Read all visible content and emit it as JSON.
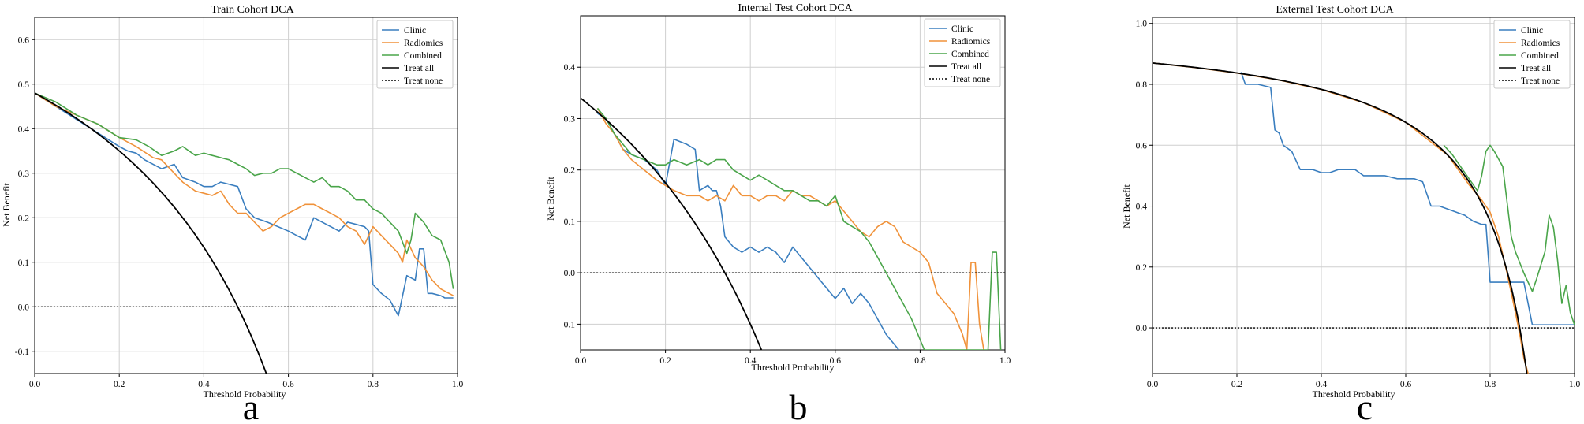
{
  "figure": {
    "panel_letters": [
      "a",
      "b",
      "c"
    ]
  },
  "colors": {
    "clinic": "#3a7ebf",
    "radiomics": "#f0923a",
    "combined": "#4aa54a",
    "treat_all": "#000000",
    "treat_none": "#000000",
    "grid": "#cfcfcf"
  },
  "chart_data": [
    {
      "type": "line",
      "title": "Train Cohort DCA",
      "xlabel": "Threshold Probability",
      "ylabel": "Net Benefit",
      "xlim": [
        0,
        1
      ],
      "ylim": [
        -0.15,
        0.65
      ],
      "xticks": [
        0.0,
        0.2,
        0.4,
        0.6,
        0.8,
        1.0
      ],
      "xtick_labels": [
        "0.0",
        "0.2",
        "0.4",
        "0.6",
        "0.8",
        "1.0"
      ],
      "yticks": [
        -0.1,
        0.0,
        0.1,
        0.2,
        0.3,
        0.4,
        0.5,
        0.6
      ],
      "ytick_labels": [
        "-0.1",
        "0.0",
        "0.1",
        "0.2",
        "0.3",
        "0.4",
        "0.5",
        "0.6"
      ],
      "grid": true,
      "legend": [
        "Clinic",
        "Radiomics",
        "Combined",
        "Treat all",
        "Treat none"
      ],
      "legend_position": "top-right",
      "prevalence": 0.48,
      "series": [
        {
          "name": "Clinic",
          "x": [
            0.0,
            0.05,
            0.1,
            0.15,
            0.2,
            0.22,
            0.24,
            0.26,
            0.3,
            0.33,
            0.35,
            0.38,
            0.4,
            0.42,
            0.44,
            0.46,
            0.48,
            0.5,
            0.52,
            0.55,
            0.6,
            0.62,
            0.64,
            0.66,
            0.68,
            0.7,
            0.72,
            0.74,
            0.76,
            0.78,
            0.79,
            0.8,
            0.82,
            0.84,
            0.86,
            0.88,
            0.9,
            0.91,
            0.92,
            0.93,
            0.94,
            0.96,
            0.97,
            0.99
          ],
          "values": [
            0.48,
            0.45,
            0.42,
            0.39,
            0.36,
            0.35,
            0.345,
            0.33,
            0.31,
            0.32,
            0.29,
            0.28,
            0.27,
            0.27,
            0.28,
            0.275,
            0.27,
            0.22,
            0.2,
            0.19,
            0.17,
            0.16,
            0.15,
            0.2,
            0.19,
            0.18,
            0.17,
            0.19,
            0.185,
            0.18,
            0.17,
            0.05,
            0.03,
            0.015,
            -0.02,
            0.07,
            0.06,
            0.13,
            0.13,
            0.03,
            0.03,
            0.025,
            0.02,
            0.02
          ]
        },
        {
          "name": "Radiomics",
          "x": [
            0.0,
            0.05,
            0.1,
            0.15,
            0.2,
            0.24,
            0.28,
            0.3,
            0.33,
            0.35,
            0.38,
            0.4,
            0.42,
            0.44,
            0.46,
            0.48,
            0.5,
            0.52,
            0.54,
            0.56,
            0.58,
            0.6,
            0.62,
            0.64,
            0.66,
            0.68,
            0.7,
            0.72,
            0.74,
            0.76,
            0.78,
            0.8,
            0.82,
            0.84,
            0.86,
            0.87,
            0.88,
            0.9,
            0.92,
            0.94,
            0.96,
            0.98,
            0.99
          ],
          "values": [
            0.48,
            0.45,
            0.43,
            0.41,
            0.38,
            0.36,
            0.335,
            0.33,
            0.3,
            0.28,
            0.26,
            0.255,
            0.25,
            0.26,
            0.23,
            0.21,
            0.21,
            0.19,
            0.17,
            0.18,
            0.2,
            0.21,
            0.22,
            0.23,
            0.23,
            0.22,
            0.21,
            0.2,
            0.18,
            0.17,
            0.14,
            0.18,
            0.16,
            0.14,
            0.12,
            0.1,
            0.15,
            0.11,
            0.09,
            0.06,
            0.04,
            0.03,
            0.025
          ]
        },
        {
          "name": "Combined",
          "x": [
            0.0,
            0.05,
            0.1,
            0.15,
            0.2,
            0.24,
            0.27,
            0.3,
            0.33,
            0.35,
            0.38,
            0.4,
            0.42,
            0.44,
            0.46,
            0.48,
            0.5,
            0.52,
            0.54,
            0.56,
            0.58,
            0.6,
            0.62,
            0.64,
            0.66,
            0.68,
            0.7,
            0.72,
            0.74,
            0.76,
            0.78,
            0.8,
            0.82,
            0.84,
            0.86,
            0.88,
            0.89,
            0.9,
            0.92,
            0.94,
            0.96,
            0.98,
            0.99
          ],
          "values": [
            0.48,
            0.46,
            0.43,
            0.41,
            0.38,
            0.375,
            0.36,
            0.34,
            0.35,
            0.36,
            0.34,
            0.345,
            0.34,
            0.335,
            0.33,
            0.32,
            0.31,
            0.295,
            0.3,
            0.3,
            0.31,
            0.31,
            0.3,
            0.29,
            0.28,
            0.29,
            0.27,
            0.27,
            0.26,
            0.24,
            0.24,
            0.22,
            0.21,
            0.19,
            0.17,
            0.12,
            0.15,
            0.21,
            0.19,
            0.16,
            0.15,
            0.1,
            0.04
          ]
        }
      ]
    },
    {
      "type": "line",
      "title": "Internal Test Cohort DCA",
      "xlabel": "Threshold Probability",
      "ylabel": "Net Benefit",
      "xlim": [
        0,
        1
      ],
      "ylim": [
        -0.15,
        0.5
      ],
      "xticks": [
        0.0,
        0.2,
        0.4,
        0.6,
        0.8,
        1.0
      ],
      "xtick_labels": [
        "0.0",
        "0.2",
        "0.4",
        "0.6",
        "0.8",
        "1.0"
      ],
      "yticks": [
        -0.1,
        0.0,
        0.1,
        0.2,
        0.3,
        0.4
      ],
      "ytick_labels": [
        "-0.1",
        "0.0",
        "0.1",
        "0.2",
        "0.3",
        "0.4"
      ],
      "grid": true,
      "legend": [
        "Clinic",
        "Radiomics",
        "Combined",
        "Treat all",
        "Treat none"
      ],
      "legend_position": "top-right",
      "prevalence": 0.34,
      "series": [
        {
          "name": "Clinic",
          "x": [
            0.04,
            0.06,
            0.08,
            0.1,
            0.12,
            0.15,
            0.18,
            0.2,
            0.22,
            0.25,
            0.27,
            0.28,
            0.3,
            0.31,
            0.32,
            0.33,
            0.34,
            0.36,
            0.38,
            0.4,
            0.42,
            0.44,
            0.46,
            0.48,
            0.5,
            0.52,
            0.54,
            0.56,
            0.58,
            0.6,
            0.62,
            0.64,
            0.66,
            0.68,
            0.7,
            0.72,
            0.74,
            0.75
          ],
          "values": [
            0.31,
            0.3,
            0.27,
            0.24,
            0.23,
            0.22,
            0.2,
            0.17,
            0.26,
            0.25,
            0.24,
            0.16,
            0.17,
            0.16,
            0.16,
            0.13,
            0.07,
            0.05,
            0.04,
            0.05,
            0.04,
            0.05,
            0.04,
            0.02,
            0.05,
            0.03,
            0.01,
            -0.01,
            -0.03,
            -0.05,
            -0.03,
            -0.06,
            -0.04,
            -0.06,
            -0.09,
            -0.12,
            -0.14,
            -0.15
          ]
        },
        {
          "name": "Radiomics",
          "x": [
            0.04,
            0.06,
            0.08,
            0.1,
            0.12,
            0.15,
            0.18,
            0.2,
            0.22,
            0.25,
            0.28,
            0.3,
            0.32,
            0.34,
            0.36,
            0.38,
            0.4,
            0.42,
            0.44,
            0.46,
            0.48,
            0.5,
            0.52,
            0.54,
            0.56,
            0.58,
            0.6,
            0.62,
            0.64,
            0.66,
            0.68,
            0.7,
            0.72,
            0.74,
            0.76,
            0.78,
            0.8,
            0.82,
            0.84,
            0.86,
            0.88,
            0.9,
            0.91,
            0.92,
            0.93,
            0.94,
            0.95
          ],
          "values": [
            0.32,
            0.29,
            0.27,
            0.24,
            0.22,
            0.2,
            0.18,
            0.17,
            0.16,
            0.15,
            0.15,
            0.14,
            0.15,
            0.14,
            0.17,
            0.15,
            0.15,
            0.14,
            0.15,
            0.15,
            0.14,
            0.16,
            0.15,
            0.15,
            0.14,
            0.13,
            0.14,
            0.12,
            0.1,
            0.08,
            0.07,
            0.09,
            0.1,
            0.09,
            0.06,
            0.05,
            0.04,
            0.02,
            -0.04,
            -0.06,
            -0.08,
            -0.12,
            -0.15,
            0.02,
            0.02,
            -0.1,
            -0.15
          ]
        },
        {
          "name": "Combined",
          "x": [
            0.04,
            0.06,
            0.08,
            0.1,
            0.12,
            0.15,
            0.18,
            0.2,
            0.22,
            0.25,
            0.28,
            0.3,
            0.32,
            0.34,
            0.36,
            0.38,
            0.4,
            0.42,
            0.44,
            0.46,
            0.48,
            0.5,
            0.52,
            0.54,
            0.56,
            0.58,
            0.6,
            0.62,
            0.64,
            0.66,
            0.68,
            0.7,
            0.72,
            0.74,
            0.76,
            0.78,
            0.8,
            0.81,
            0.96,
            0.97,
            0.98,
            0.99
          ],
          "values": [
            0.32,
            0.3,
            0.27,
            0.25,
            0.23,
            0.22,
            0.21,
            0.21,
            0.22,
            0.21,
            0.22,
            0.21,
            0.22,
            0.22,
            0.2,
            0.19,
            0.18,
            0.19,
            0.18,
            0.17,
            0.16,
            0.16,
            0.15,
            0.14,
            0.14,
            0.13,
            0.15,
            0.1,
            0.09,
            0.08,
            0.06,
            0.03,
            0.0,
            -0.03,
            -0.06,
            -0.09,
            -0.13,
            -0.15,
            -0.15,
            0.04,
            0.04,
            -0.15
          ]
        }
      ]
    },
    {
      "type": "line",
      "title": "External Test Cohort DCA",
      "xlabel": "Threshold Probability",
      "ylabel": "Net Benefit",
      "xlim": [
        0,
        1
      ],
      "ylim": [
        -0.15,
        1.02
      ],
      "xticks": [
        0.0,
        0.2,
        0.4,
        0.6,
        0.8,
        1.0
      ],
      "xtick_labels": [
        "0.0",
        "0.2",
        "0.4",
        "0.6",
        "0.8",
        "1.0"
      ],
      "yticks": [
        0.0,
        0.2,
        0.4,
        0.6,
        0.8,
        1.0
      ],
      "ytick_labels": [
        "0.0",
        "0.2",
        "0.4",
        "0.6",
        "0.8",
        "1.0"
      ],
      "grid": true,
      "legend": [
        "Clinic",
        "Radiomics",
        "Combined",
        "Treat all",
        "Treat none"
      ],
      "legend_position": "top-right",
      "prevalence": 0.87,
      "series": [
        {
          "name": "Clinic",
          "x": [
            0.21,
            0.22,
            0.25,
            0.28,
            0.29,
            0.3,
            0.31,
            0.33,
            0.35,
            0.38,
            0.4,
            0.42,
            0.44,
            0.46,
            0.48,
            0.5,
            0.52,
            0.55,
            0.58,
            0.6,
            0.62,
            0.64,
            0.66,
            0.68,
            0.7,
            0.72,
            0.74,
            0.76,
            0.78,
            0.79,
            0.8,
            0.82,
            0.84,
            0.86,
            0.88,
            0.9,
            0.95,
            1.0
          ],
          "values": [
            0.84,
            0.8,
            0.8,
            0.79,
            0.65,
            0.64,
            0.6,
            0.58,
            0.52,
            0.52,
            0.51,
            0.51,
            0.52,
            0.52,
            0.52,
            0.5,
            0.5,
            0.5,
            0.49,
            0.49,
            0.49,
            0.48,
            0.4,
            0.4,
            0.39,
            0.38,
            0.37,
            0.35,
            0.34,
            0.34,
            0.15,
            0.15,
            0.15,
            0.15,
            0.15,
            0.01,
            0.01,
            0.01
          ]
        },
        {
          "name": "Radiomics",
          "x": [
            0.0,
            0.1,
            0.2,
            0.3,
            0.4,
            0.5,
            0.6,
            0.7,
            0.75,
            0.78,
            0.8,
            0.82,
            0.84,
            0.86,
            0.87,
            0.88,
            0.89
          ],
          "values": [
            0.87,
            0.855,
            0.837,
            0.814,
            0.783,
            0.74,
            0.675,
            0.567,
            0.47,
            0.42,
            0.38,
            0.3,
            0.18,
            0.05,
            -0.02,
            -0.1,
            -0.15
          ]
        },
        {
          "name": "Combined",
          "x": [
            0.69,
            0.71,
            0.73,
            0.75,
            0.77,
            0.78,
            0.79,
            0.8,
            0.81,
            0.83,
            0.85,
            0.86,
            0.88,
            0.9,
            0.91,
            0.93,
            0.94,
            0.95,
            0.96,
            0.97,
            0.98,
            0.99,
            1.0
          ],
          "values": [
            0.6,
            0.57,
            0.53,
            0.49,
            0.45,
            0.5,
            0.58,
            0.6,
            0.58,
            0.53,
            0.3,
            0.25,
            0.18,
            0.12,
            0.16,
            0.25,
            0.37,
            0.33,
            0.22,
            0.08,
            0.14,
            0.05,
            0.01
          ]
        }
      ]
    }
  ]
}
